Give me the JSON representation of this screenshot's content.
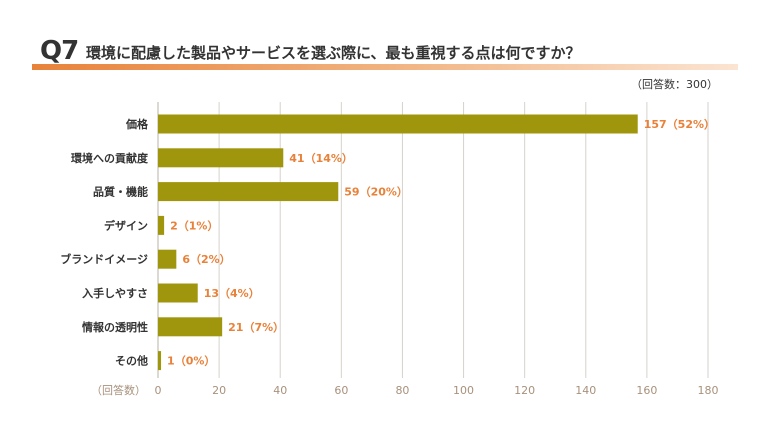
{
  "question": {
    "number": "Q7",
    "title": "環境に配慮した製品やサービスを選ぶ際に、最も重視する点は何ですか？"
  },
  "respondents": "（回答数：300）",
  "chart_data": {
    "type": "bar",
    "orientation": "horizontal",
    "categories": [
      "価格",
      "環境への貢献度",
      "品質・機能",
      "デザイン",
      "ブランドイメージ",
      "入手しやすさ",
      "情報の透明性",
      "その他"
    ],
    "values": [
      157,
      41,
      59,
      2,
      6,
      13,
      21,
      1
    ],
    "value_labels": [
      "157（52%）",
      "41（14%）",
      "59（20%）",
      "2（1%）",
      "6（2%）",
      "13（4%）",
      "21（7%）",
      "1（0%）"
    ],
    "xlabel": "（回答数）",
    "xlim": [
      0,
      180
    ],
    "xticks": [
      0,
      20,
      40,
      60,
      80,
      100,
      120,
      140,
      160,
      180
    ],
    "grid": true,
    "bar_color": "#a0960e",
    "label_color": "#e8823a",
    "grid_color": "#d6d2cc"
  }
}
